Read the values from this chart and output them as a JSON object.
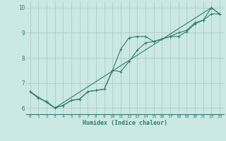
{
  "xlabel": "Humidex (Indice chaleur)",
  "bg_color": "#cce8e4",
  "grid_color": "#aacccc",
  "line_color": "#2e7d6e",
  "xlim": [
    -0.5,
    23.5
  ],
  "ylim": [
    5.75,
    10.25
  ],
  "xticks": [
    0,
    1,
    2,
    3,
    4,
    5,
    6,
    7,
    8,
    9,
    10,
    11,
    12,
    13,
    14,
    15,
    16,
    17,
    18,
    19,
    20,
    21,
    22,
    23
  ],
  "yticks": [
    6,
    7,
    8,
    9,
    10
  ],
  "line1_x": [
    0,
    1,
    2,
    3,
    4,
    5,
    6,
    7,
    8,
    9,
    10,
    11,
    12,
    13,
    14,
    15,
    16,
    17,
    18,
    19,
    20,
    21,
    22,
    23
  ],
  "line1_y": [
    6.65,
    6.4,
    6.25,
    6.0,
    6.1,
    6.3,
    6.35,
    6.65,
    6.7,
    6.75,
    7.5,
    8.35,
    8.8,
    8.85,
    8.85,
    8.65,
    8.75,
    8.85,
    9.0,
    9.1,
    9.4,
    9.5,
    10.0,
    9.75
  ],
  "line2_x": [
    0,
    1,
    2,
    3,
    4,
    5,
    6,
    7,
    8,
    9,
    10,
    11,
    12,
    13,
    14,
    15,
    16,
    17,
    18,
    19,
    20,
    21,
    22,
    23
  ],
  "line2_y": [
    6.65,
    6.4,
    6.25,
    6.0,
    6.1,
    6.3,
    6.35,
    6.65,
    6.7,
    6.75,
    7.5,
    7.45,
    7.85,
    8.3,
    8.6,
    8.65,
    8.75,
    8.85,
    8.85,
    9.05,
    9.35,
    9.5,
    9.75,
    9.75
  ],
  "line3_x": [
    0,
    3,
    22,
    23
  ],
  "line3_y": [
    6.65,
    6.0,
    10.0,
    9.75
  ]
}
